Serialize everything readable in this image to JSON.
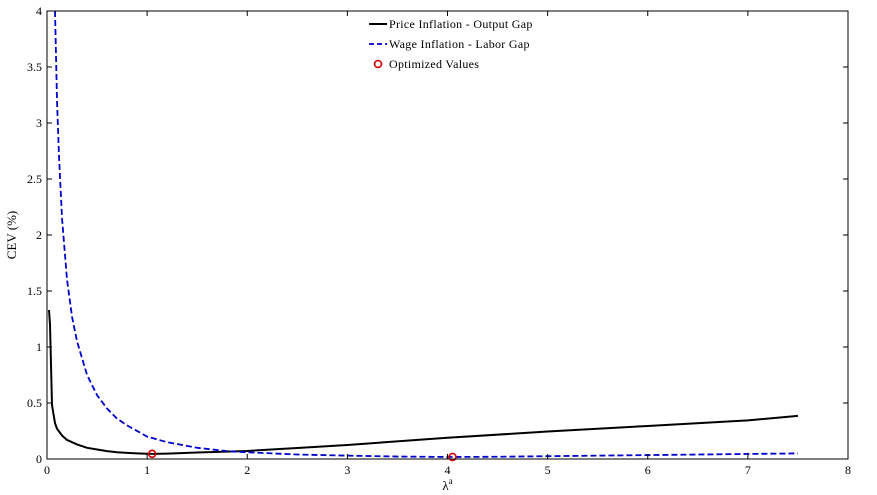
{
  "chart_data": {
    "type": "line",
    "xlabel": "λ",
    "xlabel_superscript": "a",
    "ylabel": "CEV (%)",
    "xlim": [
      0,
      8
    ],
    "ylim": [
      0,
      4
    ],
    "xticks": [
      0,
      1,
      2,
      3,
      4,
      5,
      6,
      7,
      8
    ],
    "yticks": [
      0,
      0.5,
      1,
      1.5,
      2,
      2.5,
      3,
      3.5,
      4
    ],
    "ytick_labels": [
      "0",
      "0.5",
      "1",
      "1.5",
      "2",
      "2.5",
      "3",
      "3.5",
      "4"
    ],
    "grid": false,
    "legend_position": "top-center",
    "series": [
      {
        "name": "Price Inflation - Output Gap",
        "color": "#000000",
        "style": "solid",
        "x": [
          0.02,
          0.03,
          0.05,
          0.08,
          0.1,
          0.15,
          0.2,
          0.3,
          0.4,
          0.5,
          0.6,
          0.7,
          0.8,
          0.9,
          1.0,
          1.05,
          1.2,
          1.5,
          2.0,
          2.5,
          3.0,
          4.0,
          5.0,
          6.0,
          7.0,
          7.5
        ],
        "y": [
          1.33,
          1.2,
          0.48,
          0.32,
          0.27,
          0.21,
          0.17,
          0.13,
          0.1,
          0.085,
          0.07,
          0.06,
          0.055,
          0.05,
          0.047,
          0.046,
          0.048,
          0.058,
          0.072,
          0.098,
          0.125,
          0.19,
          0.245,
          0.295,
          0.345,
          0.385
        ]
      },
      {
        "name": "Wage Inflation - Labor Gap",
        "color": "#0000cc",
        "style": "dashed",
        "x": [
          0.08,
          0.1,
          0.12,
          0.15,
          0.2,
          0.25,
          0.3,
          0.4,
          0.5,
          0.6,
          0.7,
          0.8,
          1.0,
          1.2,
          1.5,
          1.8,
          2.0,
          2.5,
          3.0,
          3.5,
          4.0,
          4.5,
          5.0,
          6.0,
          7.0,
          7.5
        ],
        "y": [
          4.0,
          3.2,
          2.7,
          2.15,
          1.6,
          1.27,
          1.05,
          0.75,
          0.57,
          0.45,
          0.36,
          0.3,
          0.2,
          0.15,
          0.1,
          0.07,
          0.06,
          0.04,
          0.03,
          0.022,
          0.018,
          0.02,
          0.025,
          0.035,
          0.045,
          0.05
        ]
      }
    ],
    "markers": {
      "name": "Optimized Values",
      "color": "#e00000",
      "points": [
        {
          "x": 1.05,
          "y": 0.046
        },
        {
          "x": 4.05,
          "y": 0.018
        }
      ]
    }
  }
}
